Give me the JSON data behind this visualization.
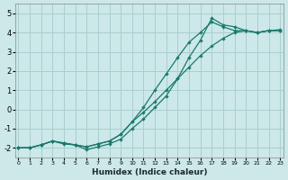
{
  "xlabel": "Humidex (Indice chaleur)",
  "ylabel": "",
  "xlim": [
    -0.3,
    23.3
  ],
  "ylim": [
    -2.5,
    5.5
  ],
  "xticks": [
    0,
    1,
    2,
    3,
    4,
    5,
    6,
    7,
    8,
    9,
    10,
    11,
    12,
    13,
    14,
    15,
    16,
    17,
    18,
    19,
    20,
    21,
    22,
    23
  ],
  "yticks": [
    -2,
    -1,
    0,
    1,
    2,
    3,
    4,
    5
  ],
  "background_color": "#cce8e8",
  "line_color": "#1a7a6e",
  "grid_color": "#aacece",
  "line1_x": [
    0,
    1,
    2,
    3,
    4,
    5,
    6,
    7,
    8,
    9,
    10,
    11,
    12,
    13,
    14,
    15,
    16,
    17,
    18,
    19,
    20,
    21,
    22,
    23
  ],
  "line1_y": [
    -2.0,
    -2.0,
    -1.85,
    -1.65,
    -1.8,
    -1.85,
    -2.1,
    -1.95,
    -1.8,
    -1.55,
    -1.0,
    -0.5,
    0.1,
    0.7,
    1.6,
    2.7,
    3.6,
    4.75,
    4.4,
    4.3,
    4.1,
    4.0,
    4.1,
    4.1
  ],
  "line2_x": [
    0,
    1,
    2,
    3,
    4,
    5,
    6,
    7,
    8,
    9,
    10,
    11,
    12,
    13,
    14,
    15,
    16,
    17,
    18,
    19,
    20,
    21,
    22,
    23
  ],
  "line2_y": [
    -2.0,
    -2.0,
    -1.85,
    -1.65,
    -1.75,
    -1.85,
    -1.95,
    -1.8,
    -1.65,
    -1.3,
    -0.65,
    0.1,
    1.0,
    1.85,
    2.7,
    3.5,
    4.0,
    4.55,
    4.3,
    4.1,
    4.1,
    4.0,
    4.1,
    4.1
  ],
  "line3_x": [
    0,
    1,
    2,
    3,
    4,
    5,
    6,
    7,
    8,
    9,
    10,
    11,
    12,
    13,
    14,
    15,
    16,
    17,
    18,
    19,
    20,
    21,
    22,
    23
  ],
  "line3_y": [
    -2.0,
    -2.0,
    -1.85,
    -1.65,
    -1.75,
    -1.85,
    -1.95,
    -1.8,
    -1.65,
    -1.3,
    -0.65,
    -0.15,
    0.4,
    1.0,
    1.6,
    2.2,
    2.8,
    3.3,
    3.7,
    4.0,
    4.1,
    4.0,
    4.1,
    4.15
  ]
}
